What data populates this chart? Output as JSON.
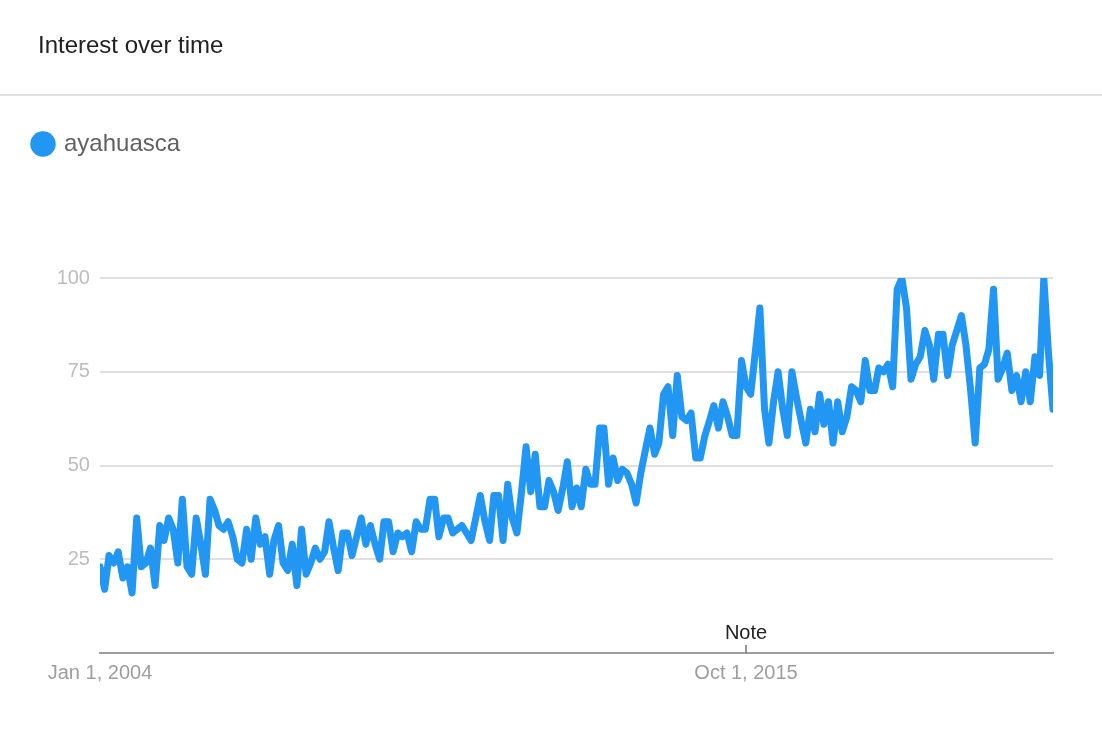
{
  "chart_data": {
    "type": "line",
    "title": "Interest over time",
    "xlim": [
      "2004-01-01",
      "2021-05-01"
    ],
    "xticks": [
      {
        "value": "2004-01-01",
        "label": "Jan 1, 2004"
      },
      {
        "value": "2015-10-01",
        "label": "Oct 1, 2015"
      }
    ],
    "ylim": [
      0,
      100
    ],
    "yticks": [
      25,
      50,
      75,
      100
    ],
    "grid": "y",
    "legend": "top left",
    "marker": "none",
    "line_style": "solid",
    "annotations": [
      "Note"
    ],
    "series": [
      {
        "name": "ayahuasca",
        "color": "#2196f3",
        "x": [
          "2004-01",
          "2004-02",
          "2004-03",
          "2004-04",
          "2004-05",
          "2004-06",
          "2004-07",
          "2004-08",
          "2004-09",
          "2004-10",
          "2004-11",
          "2004-12",
          "2005-01",
          "2005-02",
          "2005-03",
          "2005-04",
          "2005-05",
          "2005-06",
          "2005-07",
          "2005-08",
          "2005-09",
          "2005-10",
          "2005-11",
          "2005-12",
          "2006-01",
          "2006-02",
          "2006-03",
          "2006-04",
          "2006-05",
          "2006-06",
          "2006-07",
          "2006-08",
          "2006-09",
          "2006-10",
          "2006-11",
          "2006-12",
          "2007-01",
          "2007-02",
          "2007-03",
          "2007-04",
          "2007-05",
          "2007-06",
          "2007-07",
          "2007-08",
          "2007-09",
          "2007-10",
          "2007-11",
          "2007-12",
          "2008-01",
          "2008-02",
          "2008-03",
          "2008-04",
          "2008-05",
          "2008-06",
          "2008-07",
          "2008-08",
          "2008-09",
          "2008-10",
          "2008-11",
          "2008-12",
          "2009-01",
          "2009-02",
          "2009-03",
          "2009-04",
          "2009-05",
          "2009-06",
          "2009-07",
          "2009-08",
          "2009-09",
          "2009-10",
          "2009-11",
          "2009-12",
          "2010-01",
          "2010-02",
          "2010-03",
          "2010-04",
          "2010-05",
          "2010-06",
          "2010-07",
          "2010-08",
          "2010-09",
          "2010-10",
          "2010-11",
          "2010-12",
          "2011-01",
          "2011-02",
          "2011-03",
          "2011-04",
          "2011-05",
          "2011-06",
          "2011-07",
          "2011-08",
          "2011-09",
          "2011-10",
          "2011-11",
          "2011-12",
          "2012-01",
          "2012-02",
          "2012-03",
          "2012-04",
          "2012-05",
          "2012-06",
          "2012-07",
          "2012-08",
          "2012-09",
          "2012-10",
          "2012-11",
          "2012-12",
          "2013-01",
          "2013-02",
          "2013-03",
          "2013-04",
          "2013-05",
          "2013-06",
          "2013-07",
          "2013-08",
          "2013-09",
          "2013-10",
          "2013-11",
          "2013-12",
          "2014-01",
          "2014-02",
          "2014-03",
          "2014-04",
          "2014-05",
          "2014-06",
          "2014-07",
          "2014-08",
          "2014-09",
          "2014-10",
          "2014-11",
          "2014-12",
          "2015-01",
          "2015-02",
          "2015-03",
          "2015-04",
          "2015-05",
          "2015-06",
          "2015-07",
          "2015-08",
          "2015-09",
          "2015-10",
          "2015-11",
          "2015-12",
          "2016-01",
          "2016-02",
          "2016-03",
          "2016-04",
          "2016-05",
          "2016-06",
          "2016-07",
          "2016-08",
          "2016-09",
          "2016-10",
          "2016-11",
          "2016-12",
          "2017-01",
          "2017-02",
          "2017-03",
          "2017-04",
          "2017-05",
          "2017-06",
          "2017-07",
          "2017-08",
          "2017-09",
          "2017-10",
          "2017-11",
          "2017-12",
          "2018-01",
          "2018-02",
          "2018-03",
          "2018-04",
          "2018-05",
          "2018-06",
          "2018-07",
          "2018-08",
          "2018-09",
          "2018-10",
          "2018-11",
          "2018-12",
          "2019-01",
          "2019-02",
          "2019-03",
          "2019-04",
          "2019-05",
          "2019-06",
          "2019-07",
          "2019-08",
          "2019-09",
          "2019-10",
          "2019-11",
          "2019-12",
          "2020-01",
          "2020-02",
          "2020-03",
          "2020-04",
          "2020-05",
          "2020-06",
          "2020-07",
          "2020-08",
          "2020-09",
          "2020-10",
          "2020-11",
          "2020-12",
          "2021-01",
          "2021-02",
          "2021-03",
          "2021-04",
          "2021-05"
        ],
        "values": [
          23,
          17,
          26,
          24,
          27,
          20,
          23,
          16,
          36,
          23,
          24,
          28,
          18,
          34,
          30,
          36,
          33,
          24,
          41,
          23,
          21,
          36,
          29,
          21,
          41,
          38,
          34,
          33,
          35,
          31,
          25,
          24,
          33,
          25,
          36,
          29,
          31,
          21,
          30,
          34,
          24,
          22,
          29,
          18,
          33,
          21,
          24,
          28,
          25,
          27,
          35,
          28,
          22,
          32,
          32,
          26,
          31,
          36,
          29,
          34,
          29,
          25,
          35,
          35,
          27,
          32,
          31,
          32,
          27,
          35,
          33,
          33,
          41,
          41,
          31,
          36,
          36,
          32,
          33,
          34,
          32,
          30,
          36,
          42,
          35,
          30,
          42,
          42,
          30,
          45,
          36,
          32,
          43,
          55,
          43,
          53,
          39,
          39,
          46,
          43,
          38,
          44,
          51,
          39,
          44,
          39,
          49,
          45,
          45,
          60,
          60,
          45,
          52,
          46,
          49,
          48,
          45,
          40,
          48,
          54,
          60,
          53,
          56,
          69,
          71,
          58,
          74,
          63,
          62,
          64,
          52,
          52,
          58,
          62,
          66,
          60,
          67,
          63,
          58,
          58,
          78,
          71,
          69,
          80,
          92,
          65,
          56,
          67,
          75,
          65,
          58,
          75,
          68,
          62,
          56,
          65,
          59,
          69,
          61,
          67,
          56,
          67,
          59,
          63,
          71,
          70,
          67,
          78,
          70,
          70,
          76,
          75,
          77,
          71,
          97,
          100,
          92,
          73,
          77,
          79,
          86,
          82,
          73,
          85,
          85,
          74,
          82,
          86,
          90,
          82,
          70,
          56,
          76,
          77,
          81,
          97,
          73,
          76,
          80,
          70,
          74,
          67,
          75,
          67,
          79,
          74,
          100,
          80,
          65
        ]
      }
    ]
  }
}
